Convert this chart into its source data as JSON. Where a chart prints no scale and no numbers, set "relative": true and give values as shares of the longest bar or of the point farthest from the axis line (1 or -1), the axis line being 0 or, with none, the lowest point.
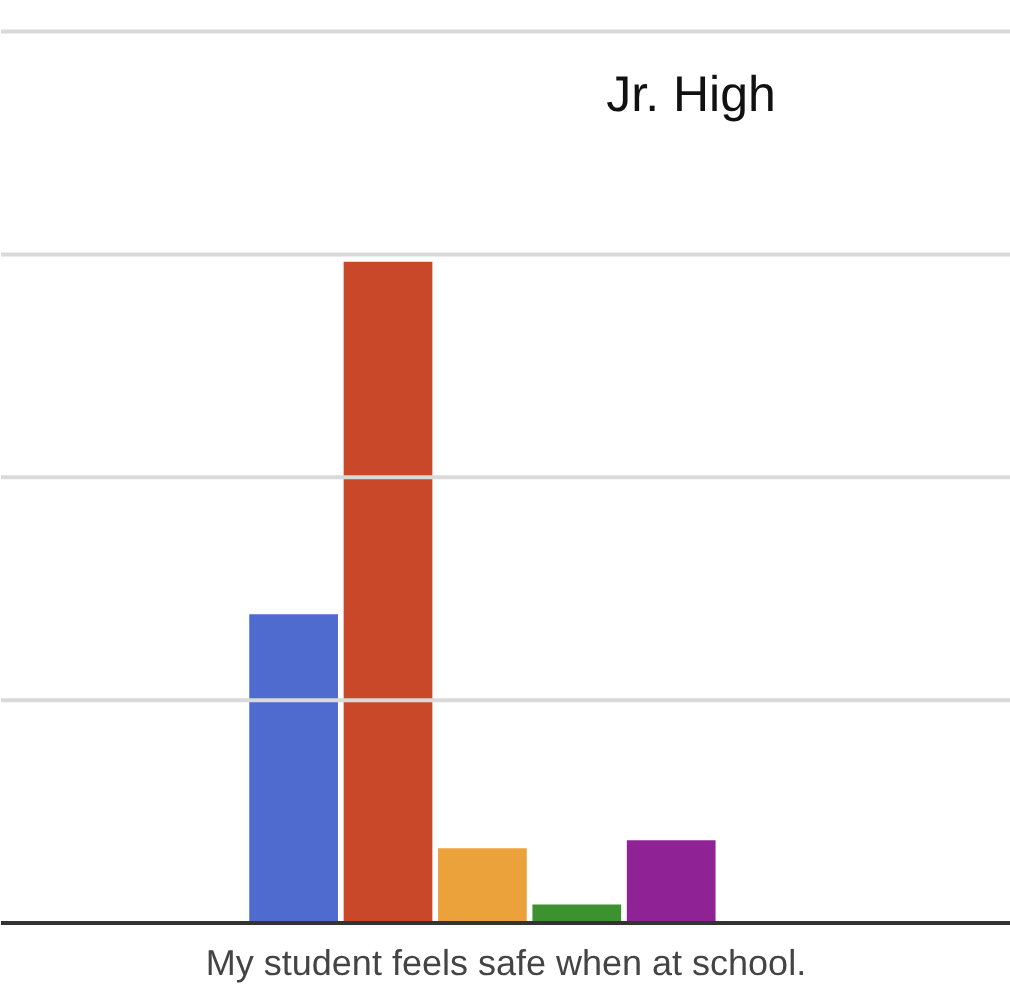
{
  "chart_data": {
    "type": "bar",
    "title": "Jr. High",
    "xlabel": "My student feels safe when at school.",
    "relative": true,
    "ref_lines": [
      {
        "axis": "y",
        "value": 0.337,
        "color": "#d9d9d9"
      },
      {
        "axis": "y",
        "value": 0.674,
        "color": "#d9d9d9"
      },
      {
        "axis": "y",
        "value": 1.011,
        "color": "#d9d9d9"
      },
      {
        "axis": "y",
        "value": 1.348,
        "color": "#d9d9d9"
      }
    ],
    "categories": [
      null,
      null,
      null,
      null,
      null
    ],
    "values": [
      0.467,
      1,
      0.113,
      0.028,
      0.125
    ],
    "colors": [
      "#4f6bd0",
      "#c9482a",
      "#eca23a",
      "#3d9131",
      "#8f2396"
    ]
  }
}
